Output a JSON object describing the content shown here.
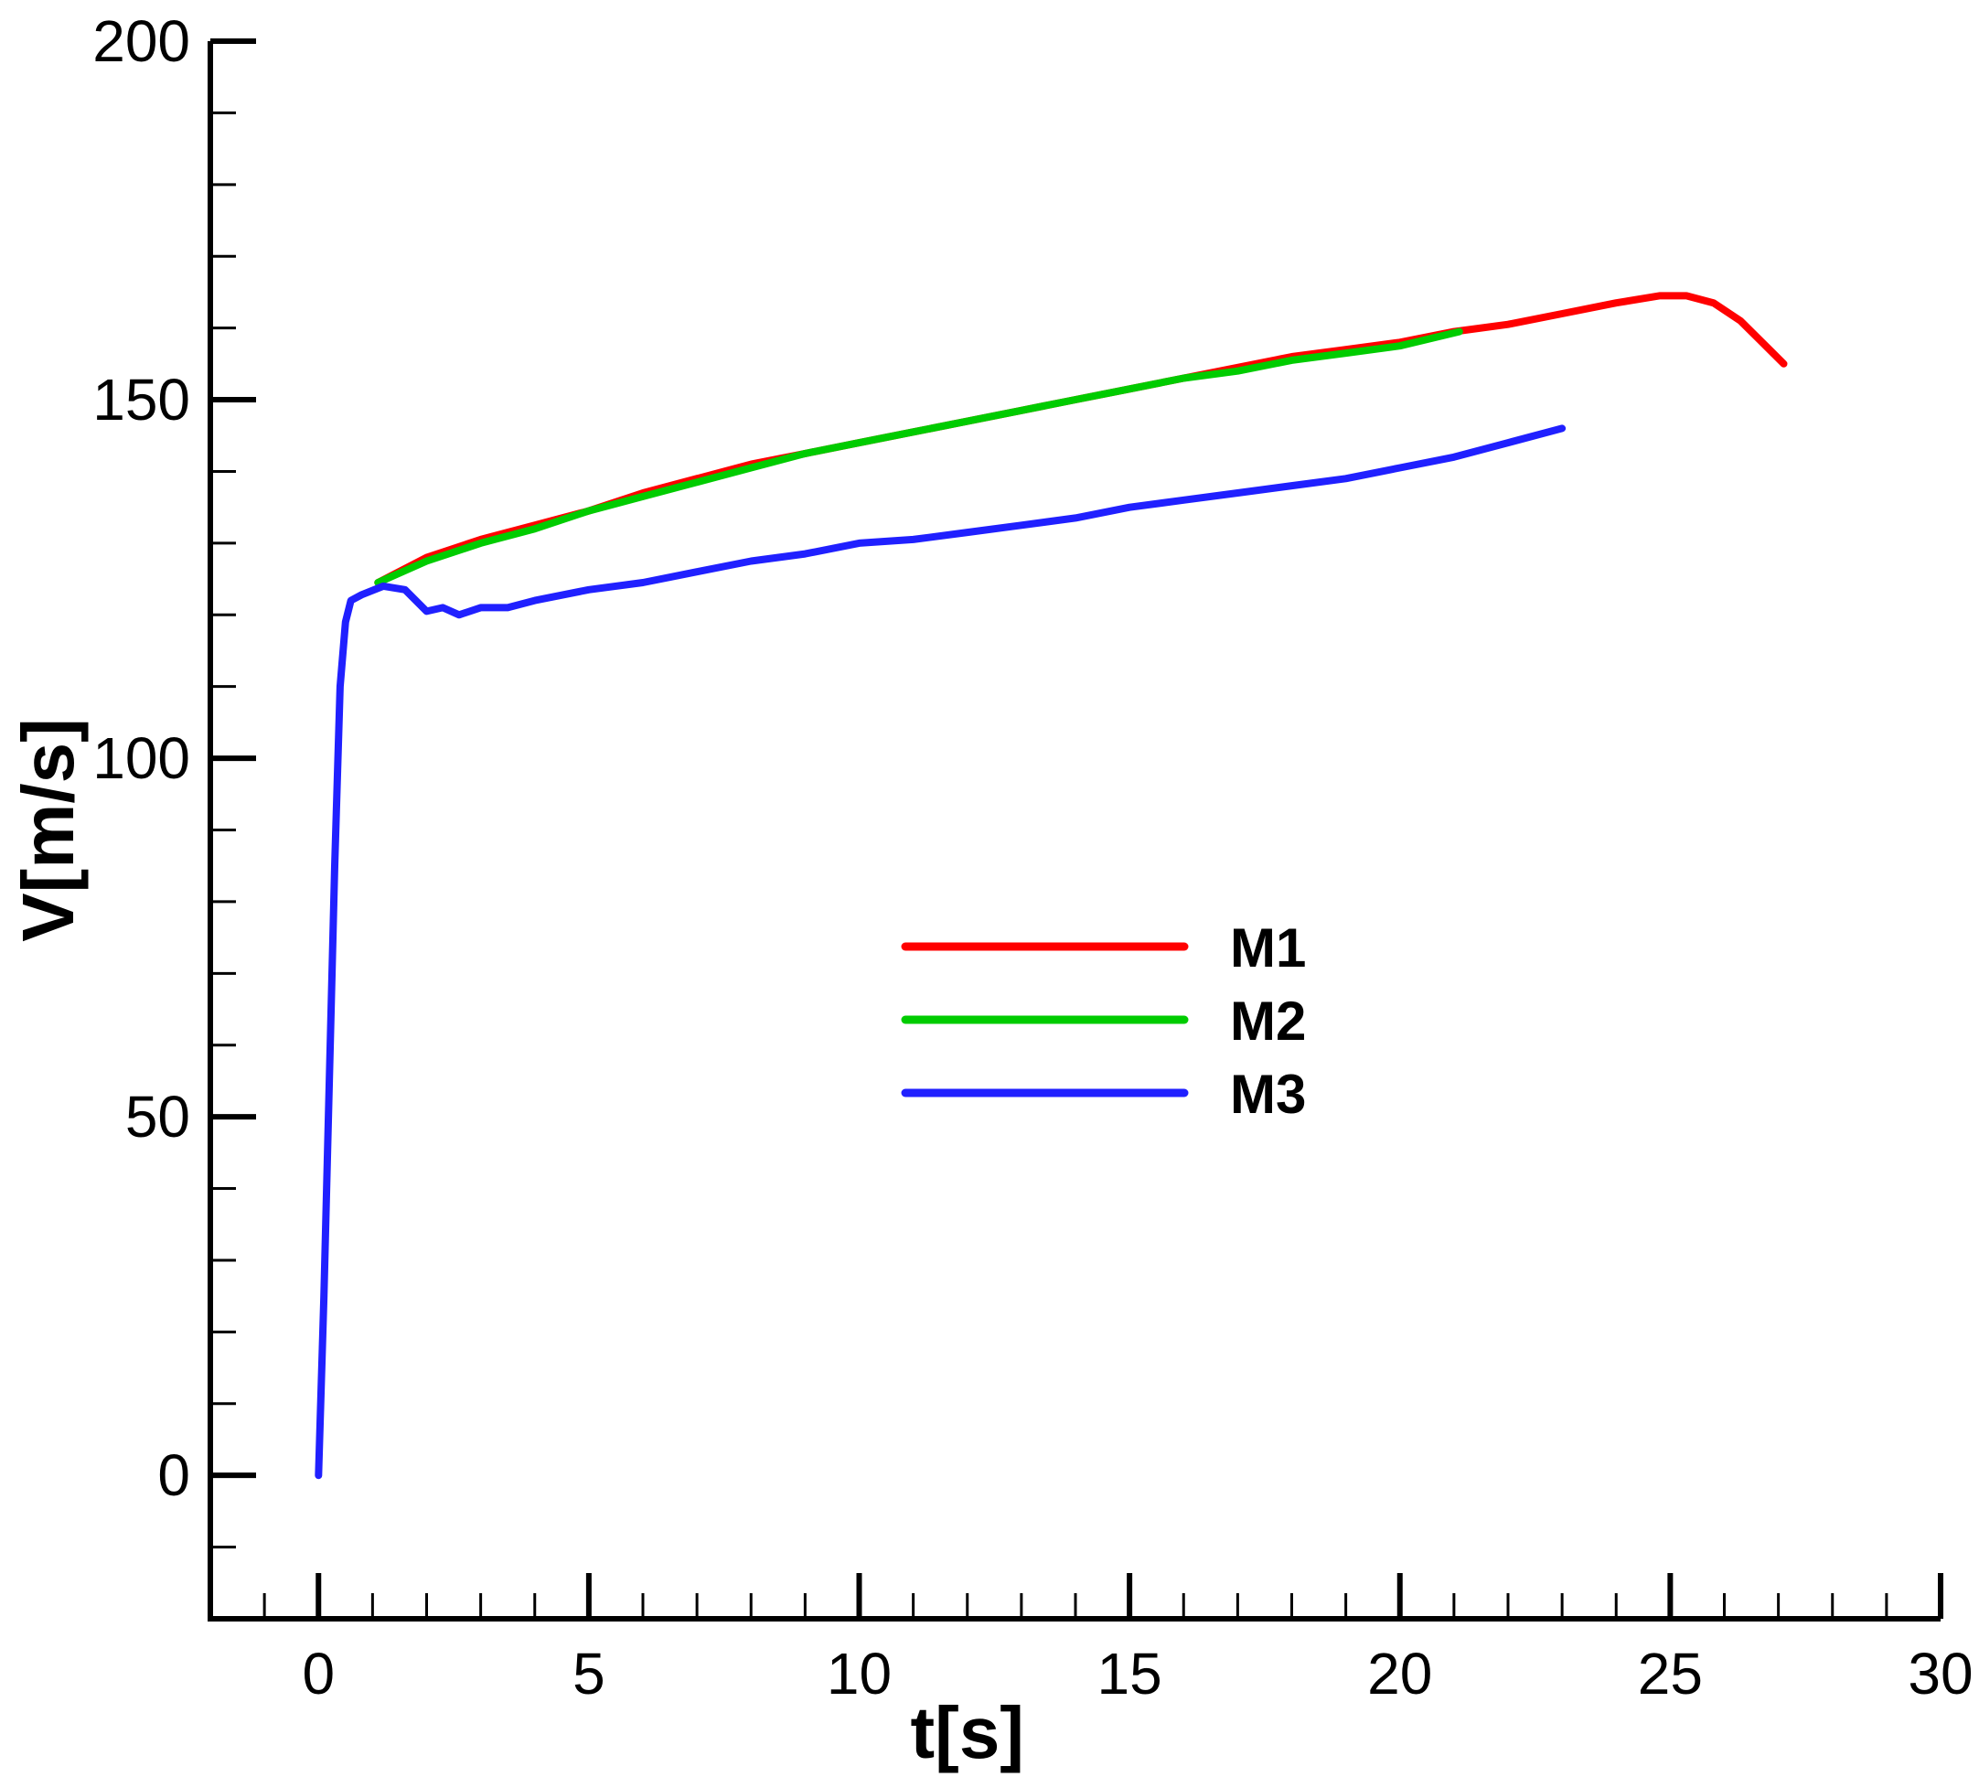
{
  "chart_data": {
    "type": "line",
    "xlabel": "t[s]",
    "ylabel": "V[m/s]",
    "xlim": [
      -2,
      30
    ],
    "ylim": [
      -20,
      200
    ],
    "x_ticks": [
      "0",
      "5",
      "10",
      "15",
      "20",
      "25",
      "30"
    ],
    "y_ticks": [
      "0",
      "50",
      "100",
      "150",
      "200"
    ],
    "grid": false,
    "legend_position": "center-right",
    "series": [
      {
        "name": "M1",
        "color": "#ff0000",
        "points": [
          [
            1.1,
            124.5
          ],
          [
            2,
            128
          ],
          [
            3,
            130.5
          ],
          [
            4,
            132.5
          ],
          [
            5,
            134.5
          ],
          [
            6,
            137
          ],
          [
            7,
            139
          ],
          [
            8,
            141
          ],
          [
            9,
            142.5
          ],
          [
            10,
            144
          ],
          [
            11,
            145.5
          ],
          [
            12,
            147
          ],
          [
            13,
            148.5
          ],
          [
            14,
            150
          ],
          [
            15,
            151.5
          ],
          [
            16,
            153
          ],
          [
            17,
            154.5
          ],
          [
            18,
            156
          ],
          [
            19,
            157
          ],
          [
            20,
            158
          ],
          [
            21,
            159.5
          ],
          [
            22,
            160.5
          ],
          [
            23,
            162
          ],
          [
            24,
            163.5
          ],
          [
            24.8,
            164.5
          ],
          [
            25.3,
            164.5
          ],
          [
            25.8,
            163.5
          ],
          [
            26.3,
            161
          ],
          [
            26.7,
            158
          ],
          [
            27.1,
            155
          ]
        ]
      },
      {
        "name": "M2",
        "color": "#00cc00",
        "points": [
          [
            1.1,
            124.5
          ],
          [
            2,
            127.5
          ],
          [
            3,
            130
          ],
          [
            4,
            132
          ],
          [
            5,
            134.5
          ],
          [
            6,
            136.5
          ],
          [
            7,
            138.5
          ],
          [
            8,
            140.5
          ],
          [
            9,
            142.5
          ],
          [
            10,
            144
          ],
          [
            11,
            145.5
          ],
          [
            12,
            147
          ],
          [
            13,
            148.5
          ],
          [
            14,
            150
          ],
          [
            15,
            151.5
          ],
          [
            16,
            153
          ],
          [
            17,
            154
          ],
          [
            18,
            155.5
          ],
          [
            19,
            156.5
          ],
          [
            20,
            157.5
          ],
          [
            21.1,
            159.5
          ]
        ]
      },
      {
        "name": "M3",
        "color": "#2020ff",
        "points": [
          [
            0,
            0
          ],
          [
            0.1,
            25
          ],
          [
            0.2,
            55
          ],
          [
            0.3,
            85
          ],
          [
            0.4,
            110
          ],
          [
            0.5,
            119
          ],
          [
            0.6,
            122
          ],
          [
            0.8,
            122.8
          ],
          [
            1.2,
            124
          ],
          [
            1.6,
            123.5
          ],
          [
            2,
            120.5
          ],
          [
            2.3,
            121
          ],
          [
            2.6,
            120
          ],
          [
            3,
            121
          ],
          [
            3.5,
            121
          ],
          [
            4,
            122
          ],
          [
            5,
            123.5
          ],
          [
            6,
            124.5
          ],
          [
            7,
            126
          ],
          [
            8,
            127.5
          ],
          [
            9,
            128.5
          ],
          [
            10,
            130
          ],
          [
            11,
            130.5
          ],
          [
            12,
            131.5
          ],
          [
            13,
            132.5
          ],
          [
            14,
            133.5
          ],
          [
            15,
            135
          ],
          [
            16,
            136
          ],
          [
            17,
            137
          ],
          [
            18,
            138
          ],
          [
            19,
            139
          ],
          [
            20,
            140.5
          ],
          [
            21,
            142
          ],
          [
            22,
            144
          ],
          [
            23,
            146
          ]
        ]
      }
    ]
  }
}
